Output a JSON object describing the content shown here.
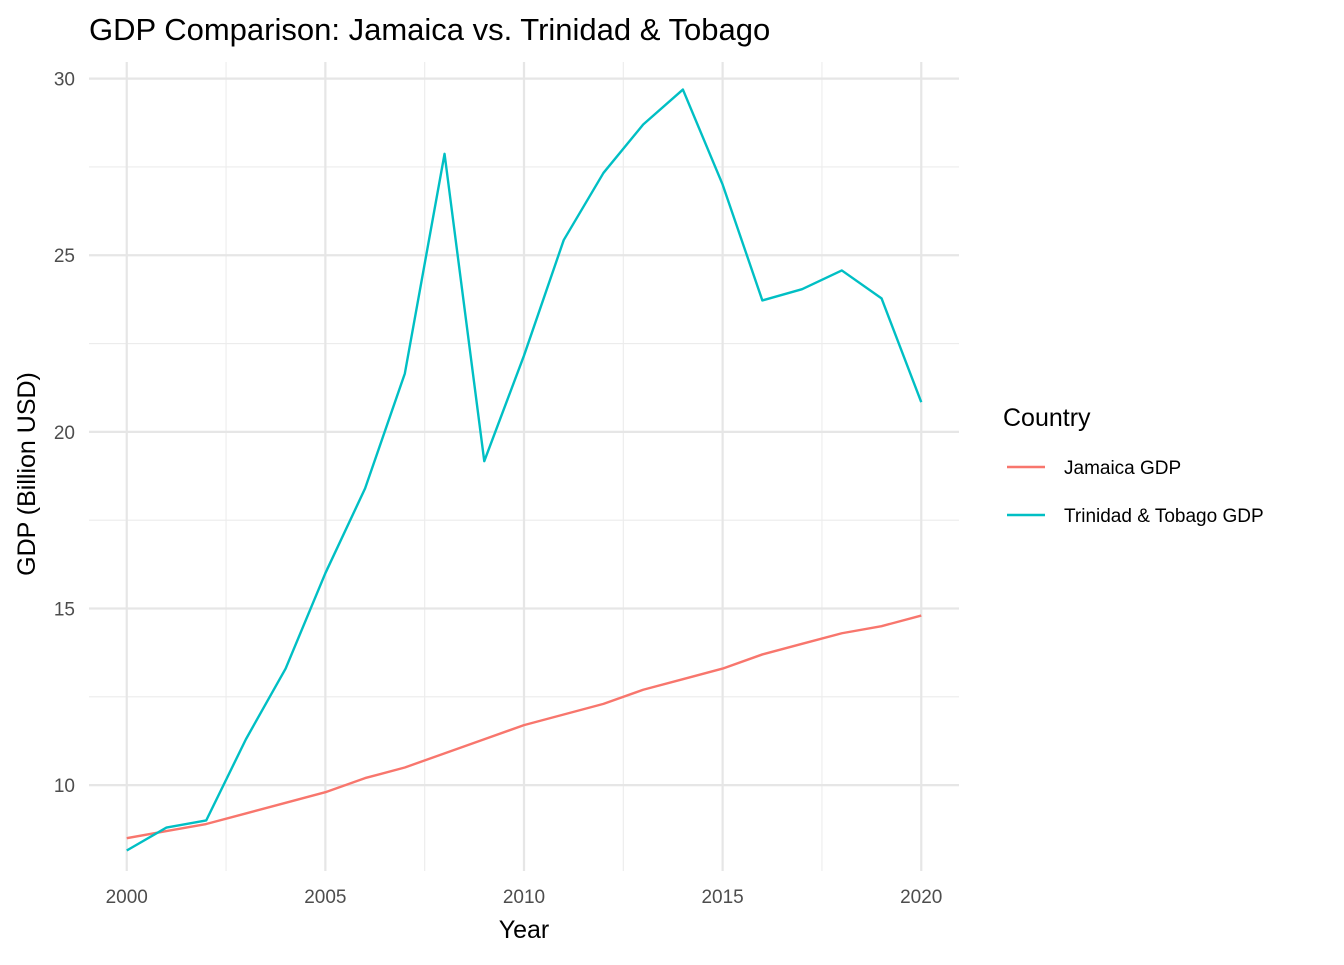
{
  "chart_data": {
    "type": "line",
    "title": "GDP Comparison: Jamaica vs. Trinidad & Tobago",
    "xlabel": "Year",
    "ylabel": "GDP (Billion USD)",
    "xlim": [
      1999.05,
      2020.95
    ],
    "ylim": [
      7.57,
      30.47
    ],
    "x_ticks": [
      2000,
      2005,
      2010,
      2015,
      2020
    ],
    "y_ticks": [
      10,
      15,
      20,
      25,
      30
    ],
    "x": [
      2000,
      2001,
      2002,
      2003,
      2004,
      2005,
      2006,
      2007,
      2008,
      2009,
      2010,
      2011,
      2012,
      2013,
      2014,
      2015,
      2016,
      2017,
      2018,
      2019,
      2020
    ],
    "grid": true,
    "legend": {
      "title": "Country",
      "position": "right"
    },
    "series": [
      {
        "name": "Jamaica GDP",
        "color": "#F8766D",
        "values": [
          8.5,
          8.7,
          8.9,
          9.2,
          9.5,
          9.8,
          10.2,
          10.5,
          10.9,
          11.3,
          11.7,
          12.0,
          12.3,
          12.7,
          13.0,
          13.3,
          13.7,
          14.0,
          14.3,
          14.5,
          14.8
        ]
      },
      {
        "name": "Trinidad & Tobago GDP",
        "color": "#00BFC4",
        "values": [
          8.15,
          8.8,
          9.0,
          11.3,
          13.3,
          16.0,
          18.4,
          21.65,
          27.87,
          19.17,
          22.16,
          25.43,
          27.33,
          28.7,
          29.69,
          27.0,
          23.72,
          24.04,
          24.57,
          23.78,
          20.84
        ]
      }
    ]
  }
}
